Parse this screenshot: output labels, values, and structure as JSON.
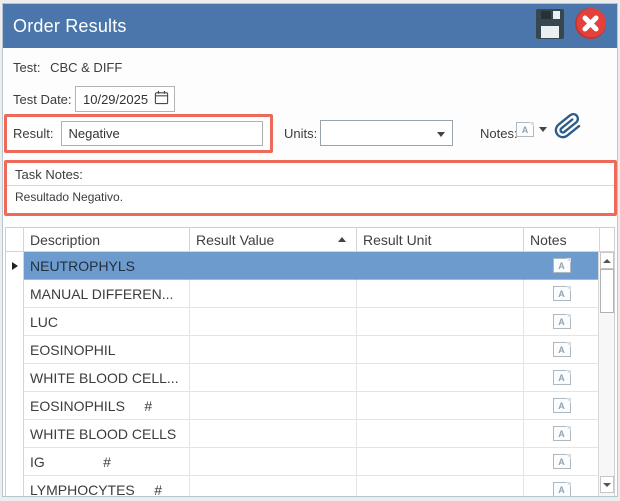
{
  "window": {
    "title": "Order Results"
  },
  "icons": {
    "save": "floppy-disk-icon",
    "close": "close-x-icon",
    "date_picker": "calendar-icon",
    "notes_button": "note-a-icon",
    "attachment": "paperclip-icon",
    "row_note": "note-a-icon",
    "selected_row_marker": "right-arrow-icon",
    "sort_indicator": "up-triangle-icon"
  },
  "form": {
    "test_label": "Test:",
    "test_value": "CBC & DIFF",
    "test_date_label": "Test Date:",
    "test_date_value": "10/29/2025",
    "result_label": "Result:",
    "result_value": "Negative",
    "units_label": "Units:",
    "units_value": "",
    "notes_label": "Notes:"
  },
  "task_notes": {
    "label": "Task Notes:",
    "text": "Resultado Negativo."
  },
  "table": {
    "columns": {
      "description": "Description",
      "result_value": "Result Value",
      "result_unit": "Result Unit",
      "notes": "Notes"
    },
    "sort": {
      "column": "Result Value",
      "direction": "ascending"
    },
    "rows": [
      {
        "description": "NEUTROPHYLS",
        "result_value": "",
        "result_unit": "",
        "has_note": true,
        "selected": true
      },
      {
        "description": "MANUAL DIFFEREN...",
        "result_value": "",
        "result_unit": "",
        "has_note": true,
        "selected": false
      },
      {
        "description": "LUC",
        "result_value": "",
        "result_unit": "",
        "has_note": true,
        "selected": false
      },
      {
        "description": "EOSINOPHIL",
        "result_value": "",
        "result_unit": "",
        "has_note": true,
        "selected": false
      },
      {
        "description": "WHITE BLOOD CELL...",
        "result_value": "",
        "result_unit": "",
        "has_note": true,
        "selected": false
      },
      {
        "description": "EOSINOPHILS     #",
        "result_value": "",
        "result_unit": "",
        "has_note": true,
        "selected": false
      },
      {
        "description": "WHITE BLOOD CELLS",
        "result_value": "",
        "result_unit": "",
        "has_note": true,
        "selected": false
      },
      {
        "description": "IG               #",
        "result_value": "",
        "result_unit": "",
        "has_note": true,
        "selected": false
      },
      {
        "description": "LYMPHOCYTES     #",
        "result_value": "",
        "result_unit": "",
        "has_note": true,
        "selected": false
      }
    ]
  },
  "colors": {
    "titlebar_blue": "#4a76ac",
    "selection_blue": "#6d9bce",
    "highlight_red": "#ed6a5a",
    "close_red": "#e2423b",
    "save_dark": "#37474f",
    "paperclip_blue": "#2b5c8a"
  }
}
